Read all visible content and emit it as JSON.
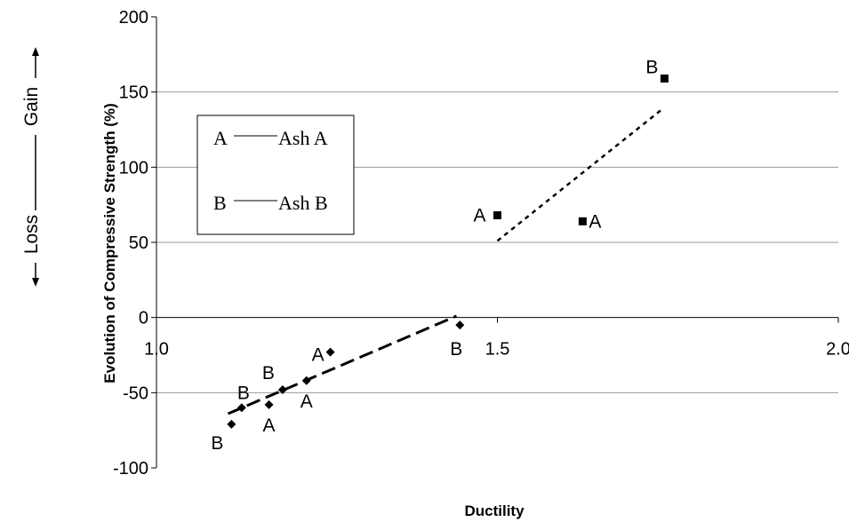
{
  "chart_data": {
    "type": "scatter",
    "title": "",
    "xlabel": "Ductility",
    "ylabel": "Evolution of Compressive Strength (%)",
    "xlim": [
      1.0,
      2.0
    ],
    "ylim": [
      -100,
      200
    ],
    "xticks": [
      "1.0",
      "1.5",
      "2.0"
    ],
    "yticks": [
      "200",
      "150",
      "100",
      "50",
      "0",
      "-50",
      "-100"
    ],
    "gridlines": "horizontal",
    "side_labels": {
      "gain": "Gain",
      "loss": "Loss"
    },
    "legend": {
      "placement": "upper-left",
      "entries": [
        {
          "marker": "A",
          "name": "Ash A"
        },
        {
          "marker": "B",
          "name": "Ash B"
        }
      ]
    },
    "series": [
      {
        "marker": "diamond",
        "points": [
          {
            "x": 1.11,
            "y": -71,
            "label": "B"
          },
          {
            "x": 1.125,
            "y": -60,
            "label": "B"
          },
          {
            "x": 1.165,
            "y": -58,
            "label": "A"
          },
          {
            "x": 1.185,
            "y": -48,
            "label": "B"
          },
          {
            "x": 1.22,
            "y": -42,
            "label": "A"
          },
          {
            "x": 1.255,
            "y": -23,
            "label": "A"
          },
          {
            "x": 1.445,
            "y": -5,
            "label": "B"
          }
        ],
        "trendline": {
          "style": "long-dash",
          "from": [
            1.105,
            -64
          ],
          "to": [
            1.44,
            1
          ]
        }
      },
      {
        "marker": "square",
        "points": [
          {
            "x": 1.5,
            "y": 68,
            "label": "A"
          },
          {
            "x": 1.625,
            "y": 64,
            "label": "A"
          },
          {
            "x": 1.745,
            "y": 159,
            "label": "B"
          }
        ],
        "trendline": {
          "style": "short-dash",
          "from": [
            1.5,
            51
          ],
          "to": [
            1.74,
            138
          ]
        }
      }
    ]
  }
}
